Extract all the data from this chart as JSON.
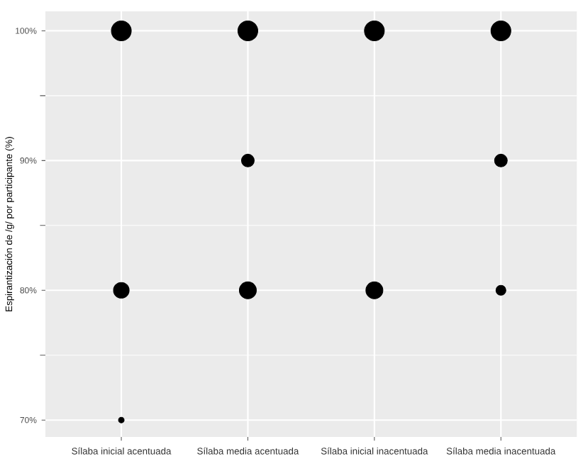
{
  "chart_data": {
    "type": "bubble",
    "ylabel": "Espirantización de /g/ por participante (%)",
    "categories": [
      "Sílaba inicial acentuada",
      "Sílaba media acentuada",
      "Sílaba inicial inacentuada",
      "Sílaba media inacentuada"
    ],
    "series": [
      {
        "color": "#000000",
        "values": [
          100,
          100,
          100,
          100
        ],
        "sizes": [
          1,
          1,
          1,
          1
        ]
      },
      {
        "color": "#000000",
        "values": [
          80,
          90,
          80,
          90
        ],
        "sizes": [
          0.62,
          0.41,
          0.73,
          0.41
        ]
      },
      {
        "color": "#000000",
        "values": [
          70,
          80,
          null,
          80
        ],
        "sizes": [
          0.08,
          0.73,
          null,
          0.25
        ]
      }
    ],
    "ylim": [
      68.7,
      101.5
    ],
    "yticks": [
      {
        "value": 70,
        "label": "70%"
      },
      {
        "value": 80,
        "label": "80%"
      },
      {
        "value": 90,
        "label": "90%"
      },
      {
        "value": 100,
        "label": "100%"
      }
    ],
    "grid": true
  }
}
